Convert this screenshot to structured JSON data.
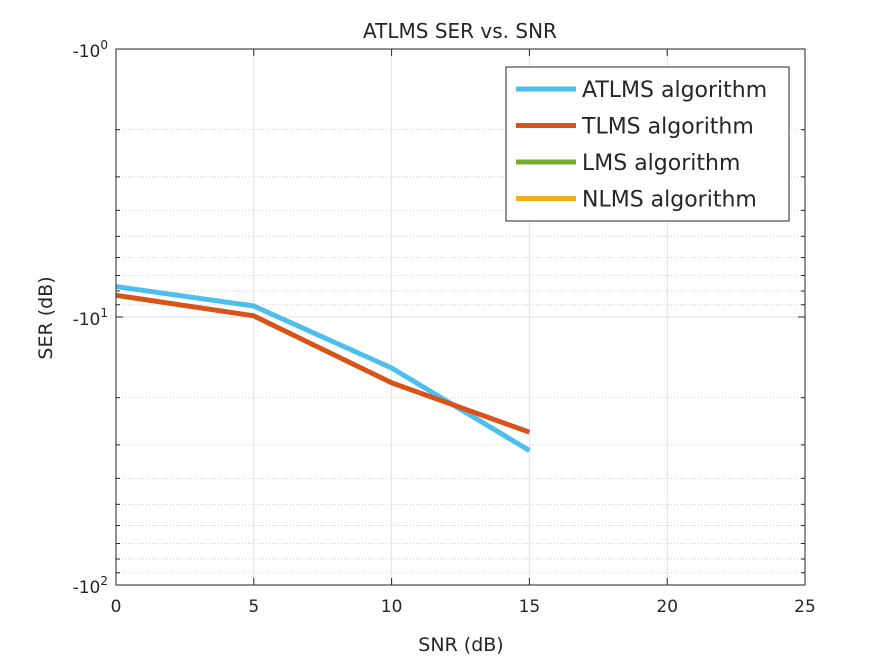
{
  "chart_data": {
    "type": "line",
    "title": "ATLMS SER vs. SNR",
    "xlabel": "SNR (dB)",
    "ylabel": "SER (dB)",
    "xlim": [
      0,
      25
    ],
    "xticks": [
      0,
      5,
      10,
      15,
      20,
      25
    ],
    "xtick_labels": [
      "0",
      "5",
      "10",
      "15",
      "20",
      "25"
    ],
    "y_scale": "log",
    "y_magnitude_range": [
      1,
      100
    ],
    "y_axis_direction": "reversed (negative values, magnitude increases downward)",
    "ytick_labels": [
      {
        "base": "-10",
        "exp": "0",
        "magnitude": 1
      },
      {
        "base": "-10",
        "exp": "1",
        "magnitude": 10
      },
      {
        "base": "-10",
        "exp": "2",
        "magnitude": 100
      }
    ],
    "grid": true,
    "legend_position": "top-right",
    "series": [
      {
        "name": "ATLMS algorithm",
        "color": "#4DBEEE",
        "x": [
          0,
          5,
          10,
          15
        ],
        "y": [
          -7.7,
          -9.1,
          -15.5,
          -31.5
        ]
      },
      {
        "name": "TLMS algorithm",
        "color": "#D95319",
        "x": [
          0,
          5,
          10,
          15
        ],
        "y": [
          -8.3,
          -9.9,
          -17.6,
          -26.9
        ]
      },
      {
        "name": "LMS algorithm",
        "color": "#77AC30",
        "x": [],
        "y": []
      },
      {
        "name": "NLMS algorithm",
        "color": "#EDB120",
        "x": [],
        "y": []
      }
    ]
  }
}
